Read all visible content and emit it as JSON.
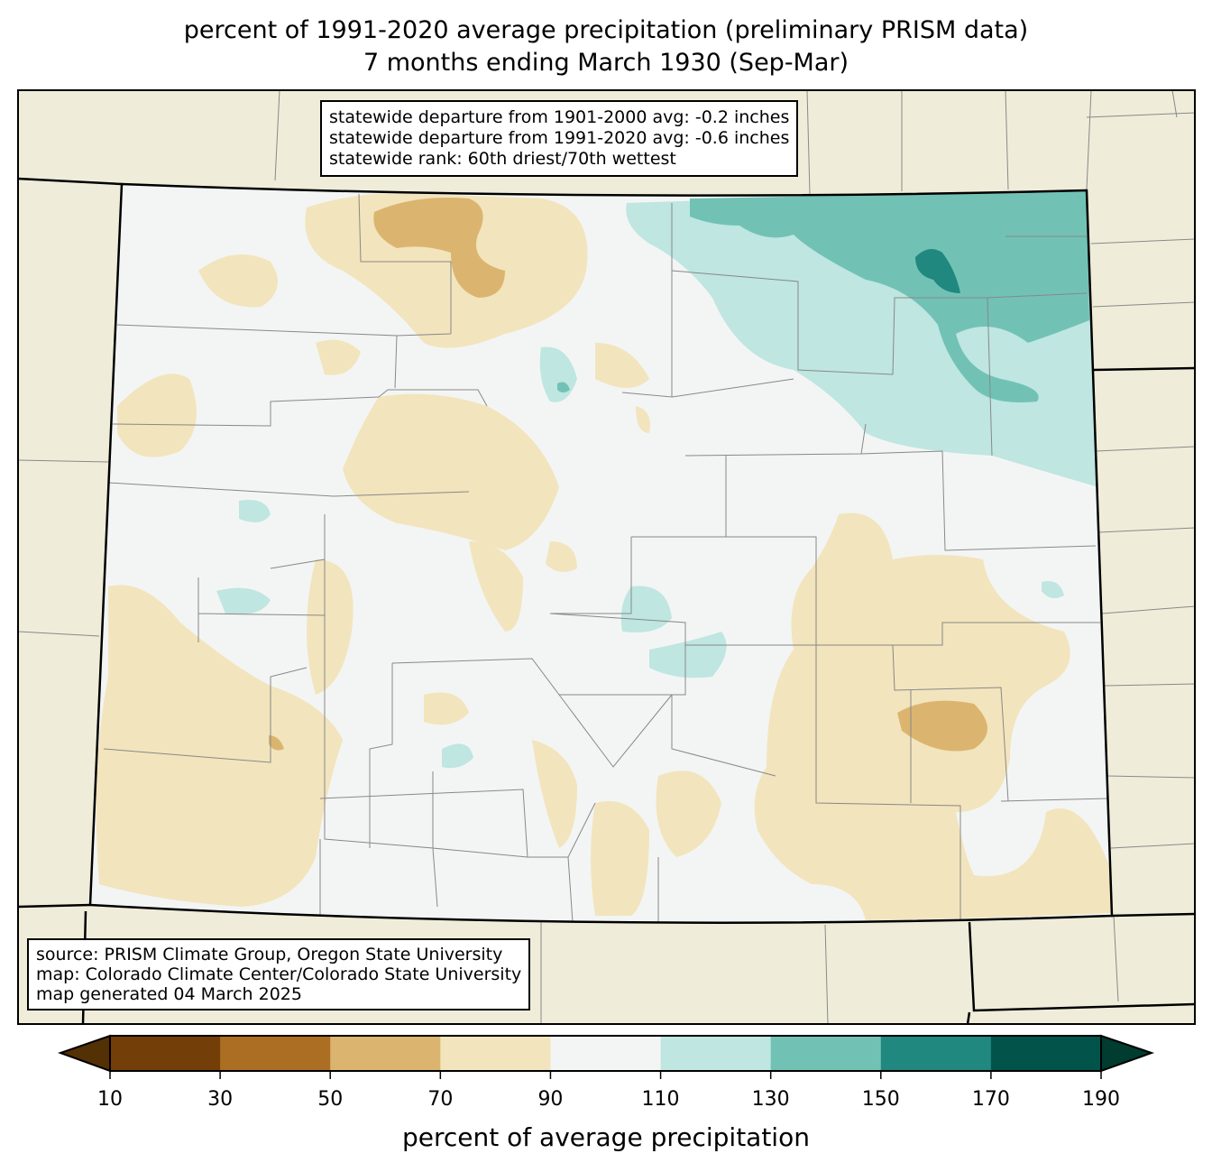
{
  "title": {
    "line1": "percent of 1991-2020 average precipitation (preliminary PRISM data)",
    "line2": "7 months ending March 1930 (Sep-Mar)"
  },
  "stats_box": {
    "line1": "statewide departure from 1901-2000 avg: -0.2 inches",
    "line2": "statewide departure from 1991-2020 avg: -0.6 inches",
    "line3": "statewide rank: 60th driest/70th wettest"
  },
  "source_box": {
    "line1": "source: PRISM Climate Group, Oregon State University",
    "line2": "map: Colorado Climate Center/Colorado State University",
    "line3": "map generated 04 March 2025"
  },
  "colorbar": {
    "label": "percent of average precipitation",
    "ticks": [
      "10",
      "30",
      "50",
      "70",
      "90",
      "110",
      "130",
      "150",
      "170",
      "190"
    ],
    "colors": [
      "#733e08",
      "#ab6e22",
      "#dbb56f",
      "#f2e4bd",
      "#f3f5f4",
      "#bfe6e1",
      "#71c2b5",
      "#218880",
      "#02544a"
    ],
    "under_color": "#543005",
    "over_color": "#003c30"
  },
  "map_colors": {
    "background": "#efedda",
    "state_fill": "#f3f5f4"
  }
}
